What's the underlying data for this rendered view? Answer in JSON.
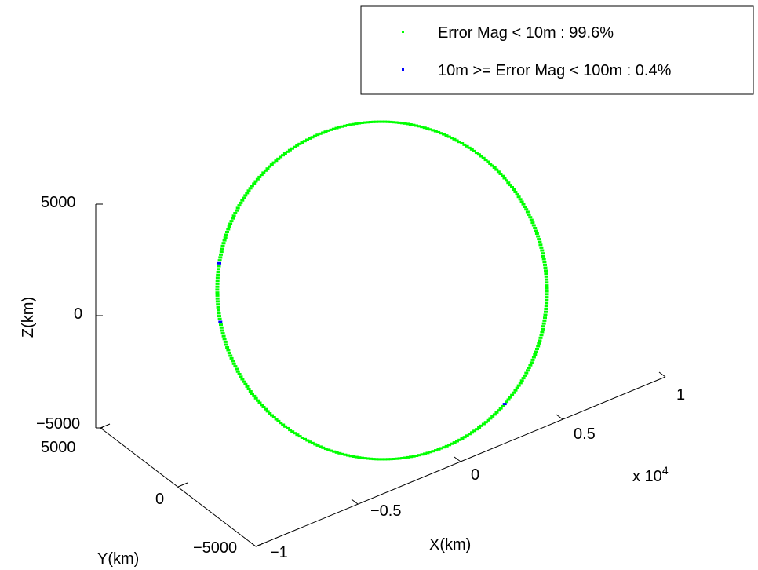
{
  "chart_data": {
    "type": "scatter",
    "projection": "3d",
    "xlabel": "X(km)",
    "ylabel": "Y(km)",
    "zlabel": "Z(km)",
    "x_exponent": "x 10",
    "x_exponent_power": "4",
    "xlim": [
      -10000,
      10000
    ],
    "ylim": [
      -5000,
      5000
    ],
    "zlim": [
      -5000,
      5000
    ],
    "x_ticks": [
      "−1",
      "−0.5",
      "0",
      "0.5",
      "1"
    ],
    "y_ticks": [
      "−5000",
      "0",
      "5000"
    ],
    "z_ticks": [
      "−5000",
      "0",
      "5000"
    ],
    "grid": false,
    "legend_position": "top-right",
    "series": [
      {
        "name": "Error Mag < 10m : 99.6%",
        "color": "#00ff00",
        "share_percent": 99.6
      },
      {
        "name": "10m >= Error Mag < 100m : 0.4%",
        "color": "#0000ff",
        "share_percent": 0.4
      }
    ],
    "orbit": {
      "shape": "closed elliptical orbit",
      "extent_km": {
        "x": [
          -8000,
          6000
        ],
        "y": [
          -2500,
          2500
        ],
        "z": [
          -5200,
          5200
        ]
      },
      "flagged_points_count": 3
    }
  }
}
